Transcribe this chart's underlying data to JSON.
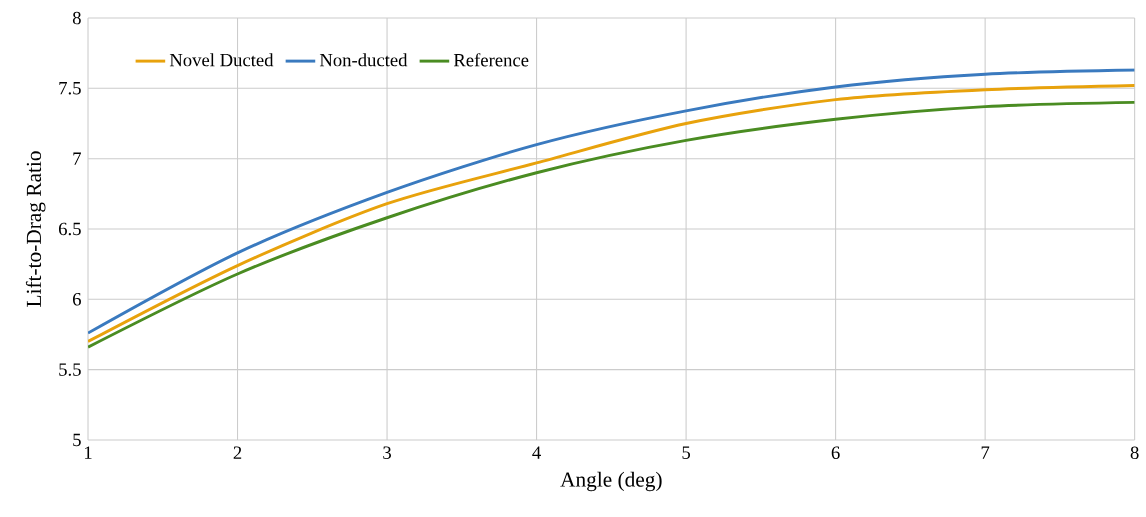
{
  "chart_data": {
    "type": "line",
    "xlabel": "Angle (deg)",
    "ylabel": "Lift-to-Drag Ratio",
    "x": [
      1,
      2,
      3,
      4,
      5,
      6,
      7,
      8
    ],
    "series": [
      {
        "name": "Novel Ducted",
        "color": "#e8a20c",
        "values": [
          5.7,
          6.24,
          6.68,
          6.97,
          7.25,
          7.42,
          7.49,
          7.52
        ]
      },
      {
        "name": "Non-ducted",
        "color": "#3a7abf",
        "values": [
          5.76,
          6.33,
          6.76,
          7.1,
          7.34,
          7.51,
          7.6,
          7.63
        ]
      },
      {
        "name": "Reference",
        "color": "#4a8c22",
        "values": [
          5.66,
          6.18,
          6.58,
          6.9,
          7.13,
          7.28,
          7.37,
          7.4
        ]
      }
    ],
    "xlim": [
      1,
      8
    ],
    "xticks": [
      1,
      2,
      3,
      4,
      5,
      6,
      7,
      8
    ],
    "ylim": [
      5,
      8
    ],
    "yticks": [
      5,
      5.5,
      6,
      6.5,
      7,
      7.5,
      8
    ],
    "grid": true,
    "legend": "top left",
    "marker": "none",
    "line_style": "solid"
  }
}
